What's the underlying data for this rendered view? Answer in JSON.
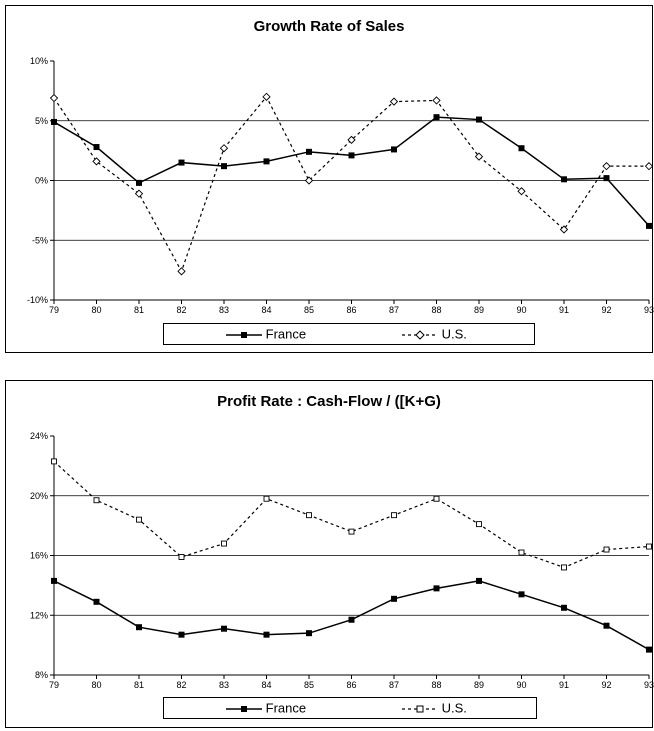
{
  "chart_data": [
    {
      "type": "line",
      "title": "Growth Rate of Sales",
      "x": [
        "79",
        "80",
        "81",
        "82",
        "83",
        "84",
        "85",
        "86",
        "87",
        "88",
        "89",
        "90",
        "91",
        "92",
        "93"
      ],
      "ytick_labels": [
        "10%",
        "5%",
        "0%",
        "-5%",
        "-10%"
      ],
      "yticks": [
        10,
        5,
        0,
        -5,
        -10
      ],
      "ylim": [
        -10,
        10
      ],
      "grid": true,
      "legend_position": "bottom",
      "series": [
        {
          "name": "France",
          "style": "solid",
          "marker": "filled-square",
          "values": [
            4.9,
            2.8,
            -0.2,
            1.5,
            1.2,
            1.6,
            2.4,
            2.1,
            2.6,
            5.3,
            5.1,
            2.7,
            0.1,
            0.2,
            -3.8
          ]
        },
        {
          "name": "U.S.",
          "style": "dashed",
          "marker": "hollow-diamond",
          "values": [
            6.9,
            1.6,
            -1.1,
            -7.6,
            2.7,
            7.0,
            0.0,
            3.4,
            6.6,
            6.7,
            2.0,
            -0.9,
            -4.1,
            1.2,
            1.2
          ]
        }
      ]
    },
    {
      "type": "line",
      "title": "Profit Rate : Cash-Flow / ([K+G)",
      "x": [
        "79",
        "80",
        "81",
        "82",
        "83",
        "84",
        "85",
        "86",
        "87",
        "88",
        "89",
        "90",
        "91",
        "92",
        "93"
      ],
      "ytick_labels": [
        "24%",
        "20%",
        "16%",
        "12%",
        "8%"
      ],
      "yticks": [
        24,
        20,
        16,
        12,
        8
      ],
      "ylim": [
        8,
        24
      ],
      "grid": true,
      "legend_position": "bottom",
      "series": [
        {
          "name": "France",
          "style": "solid",
          "marker": "filled-square",
          "values": [
            14.3,
            12.9,
            11.2,
            10.7,
            11.1,
            10.7,
            10.8,
            11.7,
            13.1,
            13.8,
            14.3,
            13.4,
            12.5,
            11.3,
            9.7
          ]
        },
        {
          "name": "U.S.",
          "style": "dashed",
          "marker": "hollow-square",
          "values": [
            22.3,
            19.7,
            18.4,
            15.9,
            16.8,
            19.8,
            18.7,
            17.6,
            18.7,
            19.8,
            18.1,
            16.2,
            15.2,
            16.4,
            16.6
          ]
        }
      ]
    }
  ]
}
